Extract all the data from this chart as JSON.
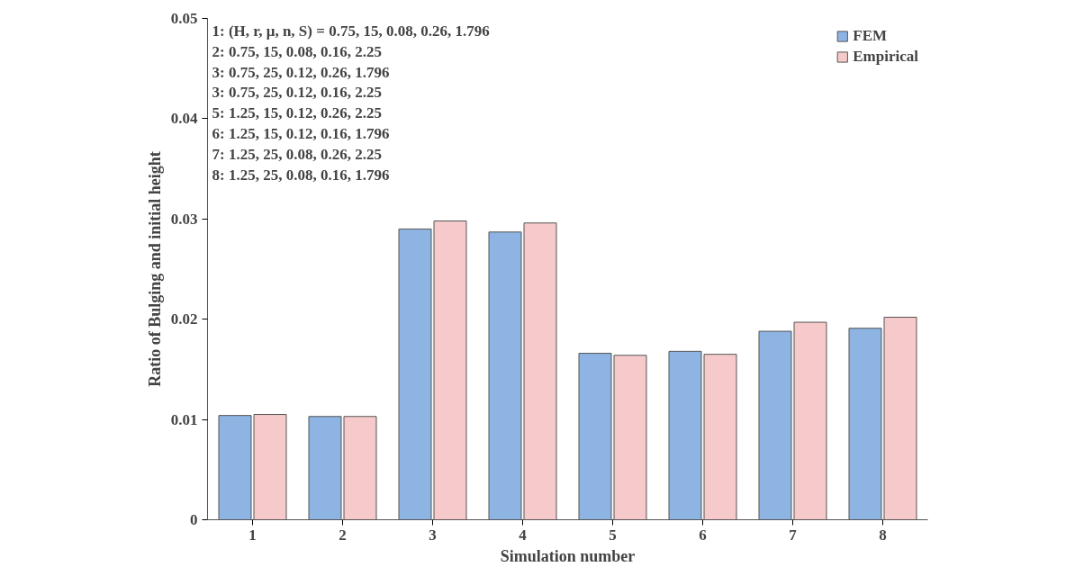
{
  "chart_data": {
    "type": "bar",
    "xlabel": "Simulation number",
    "ylabel": "Ratio of Bulging and initial height",
    "categories": [
      "1",
      "2",
      "3",
      "4",
      "5",
      "6",
      "7",
      "8"
    ],
    "series": [
      {
        "name": "FEM",
        "color": "#8db4e2",
        "values": [
          0.0104,
          0.0103,
          0.029,
          0.0287,
          0.0166,
          0.0168,
          0.0188,
          0.0191
        ]
      },
      {
        "name": "Empirical",
        "color": "#f6caca",
        "values": [
          0.0105,
          0.0103,
          0.0298,
          0.0296,
          0.0164,
          0.0165,
          0.0197,
          0.0202
        ]
      }
    ],
    "ylim": [
      0,
      0.05
    ],
    "yticks": [
      "0",
      {
        "value": 0.01,
        "label": "0.01"
      },
      {
        "value": 0.02,
        "label": "0.02"
      },
      {
        "value": 0.03,
        "label": "0.03"
      },
      {
        "value": 0.04,
        "label": "0.04"
      },
      {
        "value": 0.05,
        "label": "0.05"
      }
    ],
    "grid": false,
    "legend": "top right",
    "annotations": [
      "1: (H, r, μ, n, S) = 0.75, 15, 0.08, 0.26, 1.796",
      "2: 0.75, 15, 0.08, 0.16, 2.25",
      "3: 0.75, 25, 0.12, 0.26, 1.796",
      "3: 0.75, 25, 0.12, 0.16, 2.25",
      "5: 1.25, 15, 0.12, 0.26, 2.25",
      "6: 1.25, 15, 0.12, 0.16, 1.796",
      "7: 1.25, 25, 0.08, 0.26, 2.25",
      "8: 1.25, 25, 0.08, 0.16, 1.796"
    ]
  }
}
